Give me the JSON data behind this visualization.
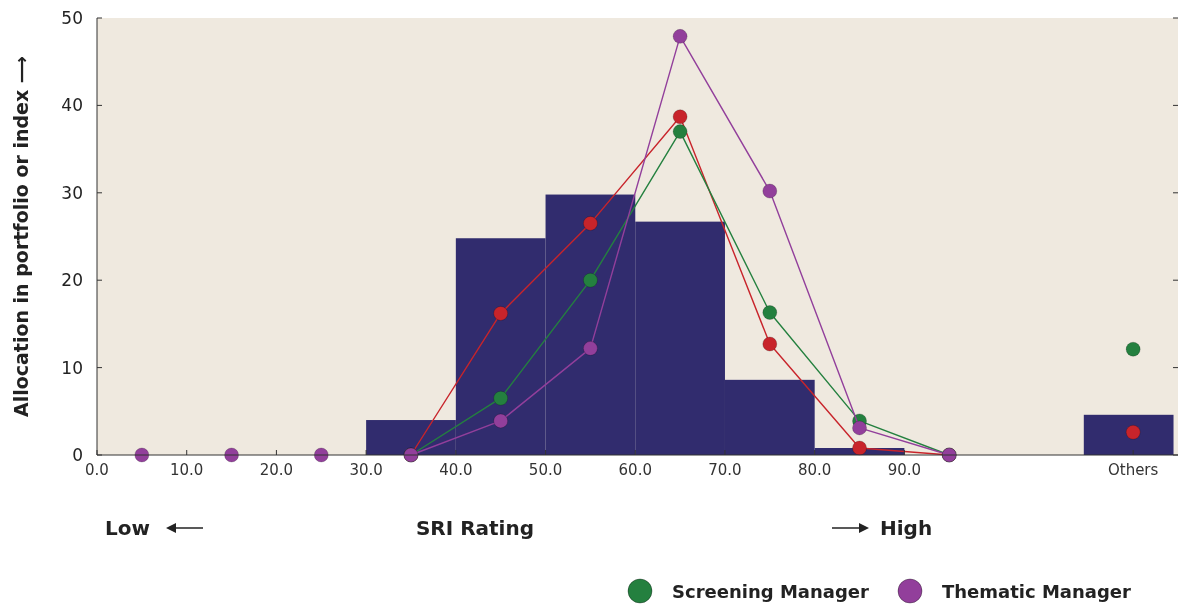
{
  "chart_data": {
    "type": "histogram",
    "xlabel": "SRI Rating",
    "ylabel": "Allocation in portfolio or index ⟶",
    "annotations": [
      "Low",
      "High"
    ],
    "bins": [
      0,
      10,
      20,
      30,
      40,
      50,
      60,
      70,
      80,
      90,
      100,
      110,
      120
    ],
    "series": [
      {
        "color": "#312c6e",
        "values": [
          0,
          0,
          0,
          4.0,
          24.8,
          29.8,
          26.7,
          8.6,
          0.8,
          0,
          0,
          4.6
        ]
      },
      {
        "type": "line",
        "color": "#c8242b",
        "x": [
          35,
          45,
          55,
          65,
          75,
          85,
          95
        ],
        "values": [
          0,
          16.2,
          26.5,
          38.7,
          12.7,
          0.8,
          0
        ]
      },
      {
        "type": "line",
        "name": "Screening Manager",
        "color": "#24803f",
        "x": [
          35,
          45,
          55,
          65,
          75,
          85,
          95
        ],
        "values": [
          0,
          6.5,
          20.0,
          37.0,
          16.3,
          3.9,
          0
        ]
      },
      {
        "type": "line",
        "name": "Thematic Manager",
        "color": "#923f9b",
        "x": [
          35,
          45,
          55,
          65,
          75,
          85,
          95
        ],
        "values": [
          0,
          3.9,
          12.2,
          47.9,
          30.2,
          3.1,
          0
        ]
      },
      {
        "type": "scatter",
        "color": "#923f9b",
        "x": [
          5,
          15,
          25
        ],
        "values": [
          0,
          0,
          0
        ]
      },
      {
        "type": "scatter",
        "color": "#c8242b",
        "x": [
          115.5
        ],
        "values": [
          2.6
        ]
      },
      {
        "type": "scatter",
        "color": "#24803f",
        "x": [
          115.5
        ],
        "values": [
          12.1
        ]
      }
    ],
    "xlim": [
      0,
      120.5
    ],
    "xticks": [
      {
        "value": 0,
        "label": "0.0"
      },
      {
        "value": 10,
        "label": "10.0"
      },
      {
        "value": 20,
        "label": "20.0"
      },
      {
        "value": 30,
        "label": "30.0"
      },
      {
        "value": 40,
        "label": "40.0"
      },
      {
        "value": 50,
        "label": "50.0"
      },
      {
        "value": 60,
        "label": "60.0"
      },
      {
        "value": 70,
        "label": "70.0"
      },
      {
        "value": 80,
        "label": "80.0"
      },
      {
        "value": 90,
        "label": "90.0"
      },
      {
        "value": 115.5,
        "label": "Others"
      }
    ],
    "ylim": [
      0,
      50
    ],
    "yticks": [
      0,
      10,
      20,
      30,
      40,
      50
    ],
    "legend": "bottom",
    "marker": "circle"
  }
}
